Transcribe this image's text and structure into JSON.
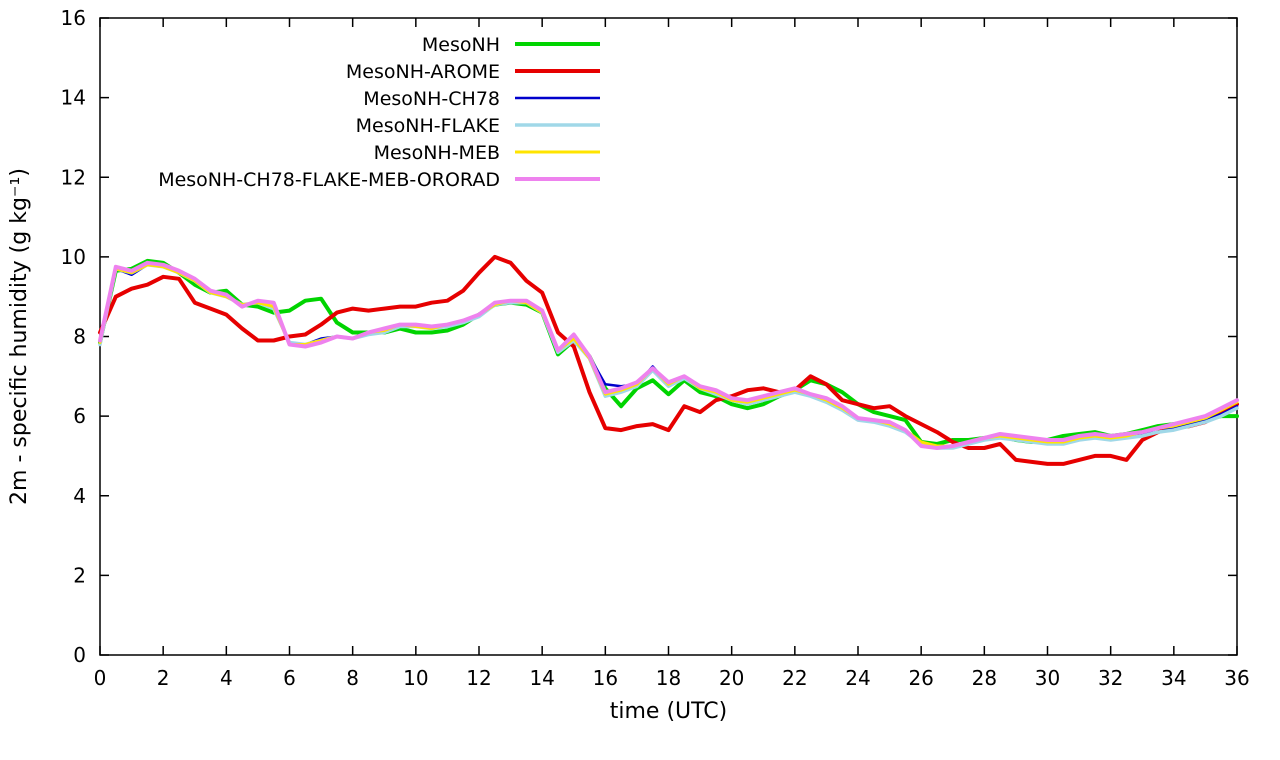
{
  "page": {
    "background": "#ffffff"
  },
  "chart_data": {
    "type": "line",
    "title": "",
    "xlabel": "time (UTC)",
    "ylabel": "2m - specific humidity (g kg⁻¹)",
    "xlim": [
      0,
      36
    ],
    "ylim": [
      0,
      16
    ],
    "xticks": [
      0,
      2,
      4,
      6,
      8,
      10,
      12,
      14,
      16,
      18,
      20,
      22,
      24,
      26,
      28,
      30,
      32,
      34,
      36
    ],
    "yticks": [
      0,
      2,
      4,
      6,
      8,
      10,
      12,
      14,
      16
    ],
    "grid": false,
    "legend_position": "top-center",
    "x_start": 0,
    "x_step": 0.5,
    "axis_color": "#000000",
    "series": [
      {
        "name": "MesoNH",
        "color": "#00d400",
        "width": 4,
        "values": [
          7.85,
          9.65,
          9.7,
          9.9,
          9.85,
          9.6,
          9.3,
          9.1,
          9.15,
          8.8,
          8.75,
          8.6,
          8.65,
          8.9,
          8.95,
          8.35,
          8.1,
          8.1,
          8.1,
          8.2,
          8.1,
          8.1,
          8.15,
          8.3,
          8.55,
          8.8,
          8.85,
          8.8,
          8.6,
          7.55,
          7.9,
          7.5,
          6.7,
          6.25,
          6.7,
          6.9,
          6.55,
          6.9,
          6.6,
          6.5,
          6.3,
          6.2,
          6.3,
          6.5,
          6.65,
          6.9,
          6.8,
          6.6,
          6.3,
          6.1,
          6.0,
          5.9,
          5.35,
          5.3,
          5.4,
          5.4,
          5.45,
          5.5,
          5.4,
          5.35,
          5.4,
          5.5,
          5.55,
          5.6,
          5.5,
          5.55,
          5.65,
          5.75,
          5.8,
          5.85,
          5.9,
          6.0,
          6.0
        ]
      },
      {
        "name": "MesoNH-AROME",
        "color": "#e60000",
        "width": 4,
        "values": [
          8.1,
          9.0,
          9.2,
          9.3,
          9.5,
          9.45,
          8.85,
          8.7,
          8.55,
          8.2,
          7.9,
          7.9,
          8.0,
          8.05,
          8.3,
          8.6,
          8.7,
          8.65,
          8.7,
          8.75,
          8.75,
          8.85,
          8.9,
          9.15,
          9.6,
          10.0,
          9.85,
          9.4,
          9.1,
          8.1,
          7.75,
          6.6,
          5.7,
          5.65,
          5.75,
          5.8,
          5.65,
          6.25,
          6.1,
          6.4,
          6.5,
          6.65,
          6.7,
          6.6,
          6.65,
          7.0,
          6.8,
          6.4,
          6.3,
          6.2,
          6.25,
          6.0,
          5.8,
          5.6,
          5.35,
          5.2,
          5.2,
          5.3,
          4.9,
          4.85,
          4.8,
          4.8,
          4.9,
          5.0,
          5.0,
          4.9,
          5.4,
          5.6,
          5.7,
          5.75,
          5.85,
          6.1,
          6.3
        ]
      },
      {
        "name": "MesoNH-CH78",
        "color": "#0000cc",
        "width": 2.5,
        "values": [
          7.8,
          9.7,
          9.55,
          9.8,
          9.75,
          9.6,
          9.4,
          9.1,
          9.0,
          8.8,
          8.85,
          8.75,
          7.85,
          7.8,
          7.95,
          8.0,
          7.95,
          8.05,
          8.15,
          8.25,
          8.3,
          8.2,
          8.3,
          8.4,
          8.55,
          8.85,
          8.9,
          8.9,
          8.65,
          7.6,
          7.95,
          7.5,
          6.8,
          6.75,
          6.8,
          7.25,
          6.8,
          7.0,
          6.75,
          6.6,
          6.45,
          6.35,
          6.45,
          6.55,
          6.65,
          6.5,
          6.4,
          6.2,
          5.9,
          5.85,
          5.8,
          5.6,
          5.35,
          5.25,
          5.2,
          5.3,
          5.4,
          5.5,
          5.45,
          5.4,
          5.35,
          5.3,
          5.4,
          5.5,
          5.45,
          5.5,
          5.55,
          5.6,
          5.7,
          5.8,
          5.9,
          6.05,
          6.25
        ]
      },
      {
        "name": "MesoNH-FLAKE",
        "color": "#a0d8e8",
        "width": 3.5,
        "values": [
          7.8,
          9.7,
          9.6,
          9.8,
          9.75,
          9.6,
          9.4,
          9.1,
          9.0,
          8.8,
          8.85,
          8.7,
          7.85,
          7.8,
          7.9,
          8.0,
          7.95,
          8.05,
          8.1,
          8.25,
          8.25,
          8.2,
          8.25,
          8.35,
          8.5,
          8.8,
          8.85,
          8.85,
          8.6,
          7.6,
          7.9,
          7.45,
          6.5,
          6.6,
          6.75,
          7.15,
          6.75,
          6.95,
          6.7,
          6.55,
          6.4,
          6.3,
          6.4,
          6.5,
          6.6,
          6.5,
          6.35,
          6.15,
          5.9,
          5.85,
          5.75,
          5.6,
          5.3,
          5.2,
          5.2,
          5.3,
          5.4,
          5.45,
          5.4,
          5.35,
          5.3,
          5.3,
          5.4,
          5.45,
          5.4,
          5.45,
          5.5,
          5.6,
          5.65,
          5.75,
          5.85,
          6.0,
          6.2
        ]
      },
      {
        "name": "MesoNH-MEB",
        "color": "#ffe400",
        "width": 3,
        "values": [
          7.85,
          9.7,
          9.6,
          9.8,
          9.75,
          9.6,
          9.4,
          9.1,
          9.0,
          8.8,
          8.85,
          8.75,
          7.8,
          7.8,
          7.9,
          8.0,
          7.95,
          8.1,
          8.15,
          8.3,
          8.25,
          8.2,
          8.3,
          8.4,
          8.55,
          8.8,
          8.9,
          8.85,
          8.6,
          7.65,
          7.95,
          7.45,
          6.55,
          6.65,
          6.8,
          7.2,
          6.8,
          7.0,
          6.7,
          6.6,
          6.4,
          6.35,
          6.45,
          6.55,
          6.65,
          6.55,
          6.4,
          6.2,
          5.95,
          5.9,
          5.8,
          5.65,
          5.35,
          5.25,
          5.25,
          5.35,
          5.45,
          5.5,
          5.45,
          5.4,
          5.35,
          5.35,
          5.45,
          5.5,
          5.45,
          5.5,
          5.6,
          5.7,
          5.75,
          5.85,
          5.95,
          6.15,
          6.35
        ]
      },
      {
        "name": "MesoNH-CH78-FLAKE-MEB-ORORAD",
        "color": "#ee82ee",
        "width": 4,
        "values": [
          7.9,
          9.75,
          9.65,
          9.85,
          9.8,
          9.65,
          9.45,
          9.15,
          9.05,
          8.75,
          8.9,
          8.85,
          7.8,
          7.75,
          7.85,
          8.0,
          7.95,
          8.1,
          8.2,
          8.3,
          8.3,
          8.25,
          8.3,
          8.4,
          8.55,
          8.85,
          8.9,
          8.9,
          8.65,
          7.65,
          8.05,
          7.5,
          6.6,
          6.7,
          6.85,
          7.2,
          6.85,
          7.0,
          6.75,
          6.65,
          6.45,
          6.4,
          6.5,
          6.6,
          6.7,
          6.55,
          6.45,
          6.25,
          5.95,
          5.9,
          5.85,
          5.65,
          5.25,
          5.2,
          5.25,
          5.35,
          5.45,
          5.55,
          5.5,
          5.45,
          5.4,
          5.4,
          5.5,
          5.55,
          5.5,
          5.55,
          5.6,
          5.7,
          5.8,
          5.9,
          6.0,
          6.2,
          6.4
        ]
      }
    ]
  }
}
